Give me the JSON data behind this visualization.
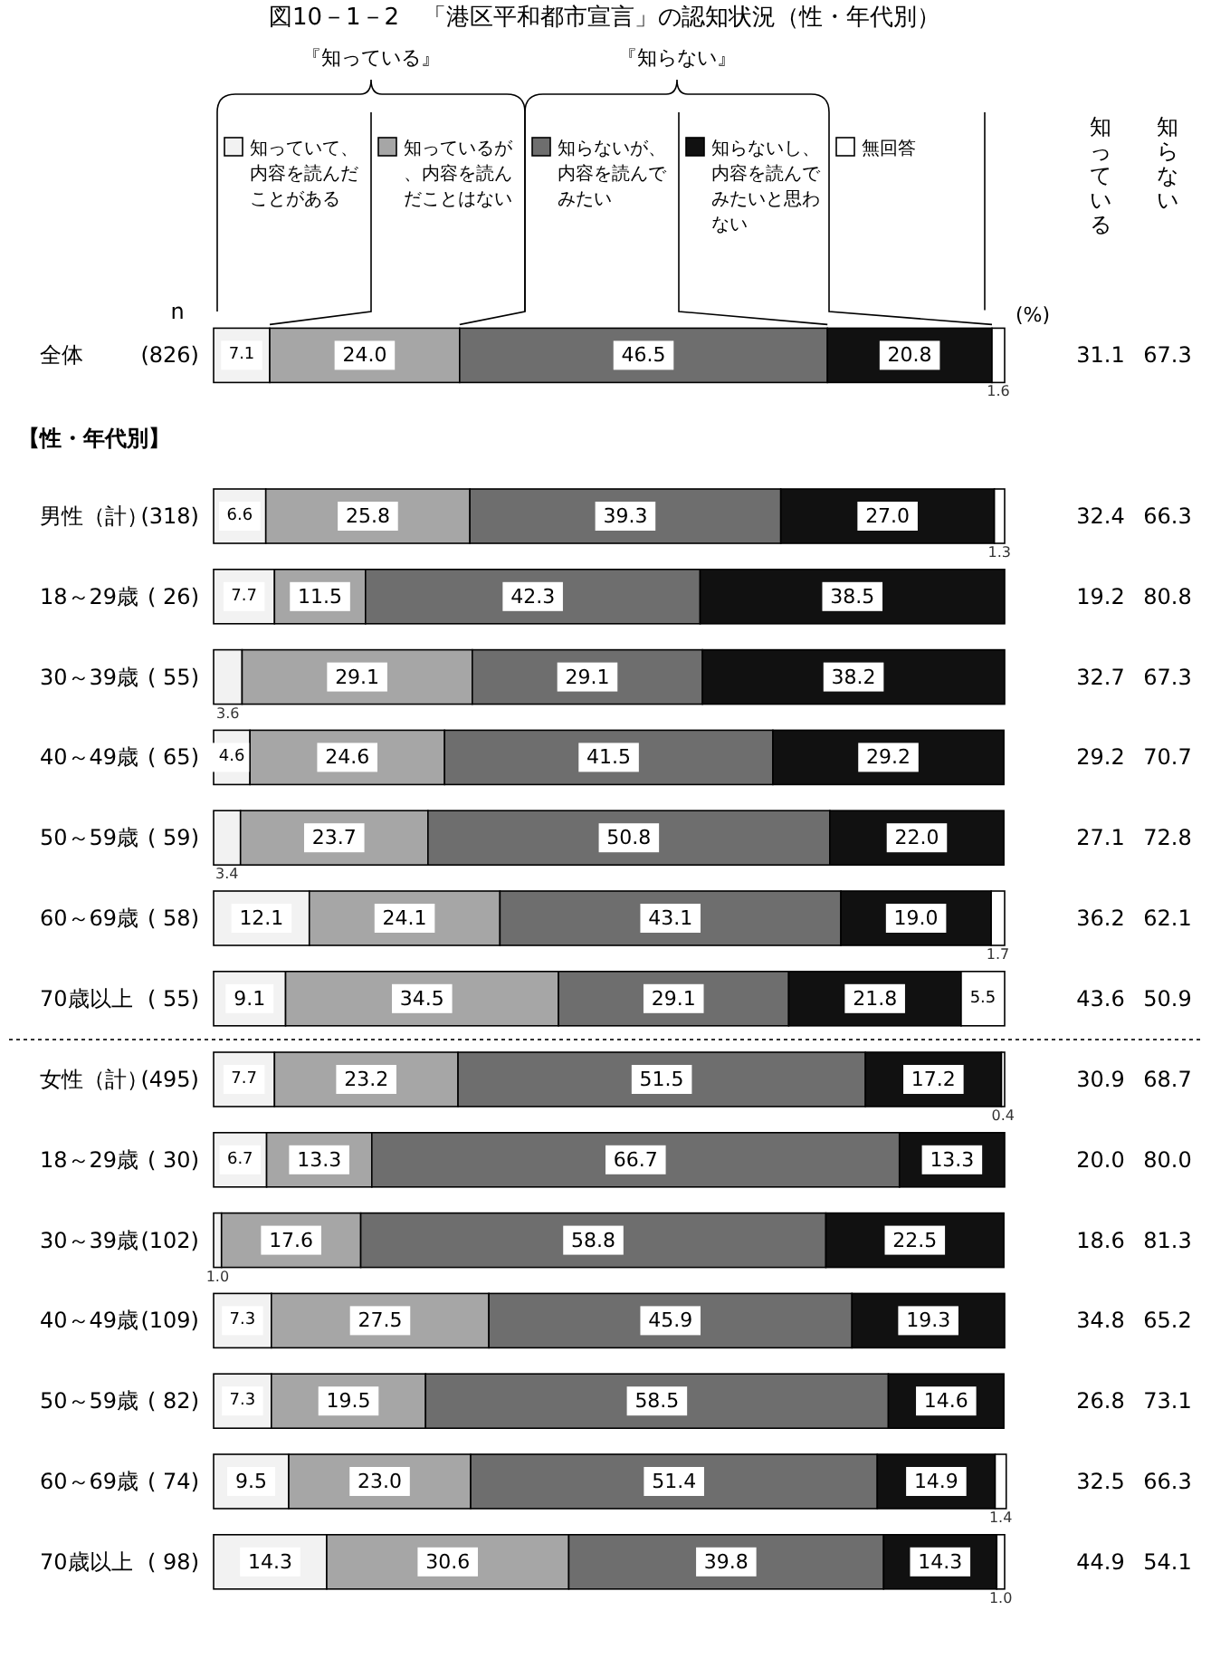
{
  "chart_data": {
    "type": "bar",
    "orientation": "horizontal",
    "stacked": true,
    "title": "図10－1－2　「港区平和都市宣言」の認知状況（性・年代別）",
    "categories": [
      "全体",
      "男性（計）",
      "18～29歳",
      "30～39歳",
      "40～49歳",
      "50～59歳",
      "60～69歳",
      "70歳以上",
      "女性（計）",
      "18～29歳",
      "30～39歳",
      "40～49歳",
      "50～59歳",
      "60～69歳",
      "70歳以上"
    ],
    "xlim": [
      0,
      100
    ],
    "series": [
      {
        "name": "知っていて、内容を読んだことがある",
        "color": "#f2f2f2",
        "values": [
          7.1,
          6.6,
          7.7,
          3.6,
          4.6,
          3.4,
          12.1,
          9.1,
          7.7,
          6.7,
          1.0,
          7.3,
          7.3,
          9.5,
          14.3
        ],
        "value_labels": [
          "7.1",
          "6.6",
          "7.7",
          "3.6",
          "4.6",
          "3.4",
          "12.1",
          "9.1",
          "7.7",
          "6.7",
          "1.0",
          "7.3",
          "7.3",
          "9.5",
          "14.3"
        ]
      },
      {
        "name": "知っているが、内容を読んだことはない",
        "color": "#a6a6a6",
        "values": [
          24.0,
          25.8,
          11.5,
          29.1,
          24.6,
          23.7,
          24.1,
          34.5,
          23.2,
          13.3,
          17.6,
          27.5,
          19.5,
          23.0,
          30.6
        ],
        "value_labels": [
          "24.0",
          "25.8",
          "11.5",
          "29.1",
          "24.6",
          "23.7",
          "24.1",
          "34.5",
          "23.2",
          "13.3",
          "17.6",
          "27.5",
          "19.5",
          "23.0",
          "30.6"
        ]
      },
      {
        "name": "知らないが、内容を読んでみたい",
        "color": "#6e6e6e",
        "values": [
          46.5,
          39.3,
          42.3,
          29.1,
          41.5,
          50.8,
          43.1,
          29.1,
          51.5,
          66.7,
          58.8,
          45.9,
          58.5,
          51.4,
          39.8
        ],
        "value_labels": [
          "46.5",
          "39.3",
          "42.3",
          "29.1",
          "41.5",
          "50.8",
          "43.1",
          "29.1",
          "51.5",
          "66.7",
          "58.8",
          "45.9",
          "58.5",
          "51.4",
          "39.8"
        ]
      },
      {
        "name": "知らないし、内容を読んでみたいと思わない",
        "color": "#111111",
        "values": [
          20.8,
          27.0,
          38.5,
          38.2,
          29.2,
          22.0,
          19.0,
          21.8,
          17.2,
          13.3,
          22.5,
          19.3,
          14.6,
          14.9,
          14.3
        ],
        "value_labels": [
          "20.8",
          "27.0",
          "38.5",
          "38.2",
          "29.2",
          "22.0",
          "19.0",
          "21.8",
          "17.2",
          "13.3",
          "22.5",
          "19.3",
          "14.6",
          "14.9",
          "14.3"
        ]
      },
      {
        "name": "無回答",
        "color": "#ffffff",
        "values": [
          1.6,
          1.3,
          0,
          0,
          0,
          0,
          1.7,
          5.5,
          0.4,
          0,
          0,
          0,
          0,
          1.4,
          1.0
        ],
        "value_labels": [
          "1.6",
          "1.3",
          null,
          null,
          null,
          null,
          "1.7",
          "5.5",
          "0.4",
          null,
          null,
          null,
          null,
          "1.4",
          "1.0"
        ]
      }
    ],
    "tick_labels": "y",
    "legend": "top",
    "annotations": [
      "『知っている』",
      "『知らない』",
      "(%)",
      "【性・年代別】",
      "n",
      "(826)",
      "(318)",
      "( 26)",
      "( 55)",
      "( 65)",
      "( 59)",
      "( 58)",
      "( 55)",
      "(495)",
      "( 30)",
      "(102)",
      "(109)",
      "( 82)",
      "( 74)",
      "( 98)",
      "知っている",
      "31.1",
      "32.4",
      "19.2",
      "32.7",
      "29.2",
      "27.1",
      "36.2",
      "43.6",
      "30.9",
      "20.0",
      "18.6",
      "34.8",
      "26.8",
      "32.5",
      "44.9",
      "知らない",
      "67.3",
      "66.3",
      "80.8",
      "67.3",
      "70.7",
      "72.8",
      "62.1",
      "50.9",
      "68.7",
      "80.0",
      "81.3",
      "65.2",
      "73.1",
      "66.3",
      "54.1"
    ]
  }
}
